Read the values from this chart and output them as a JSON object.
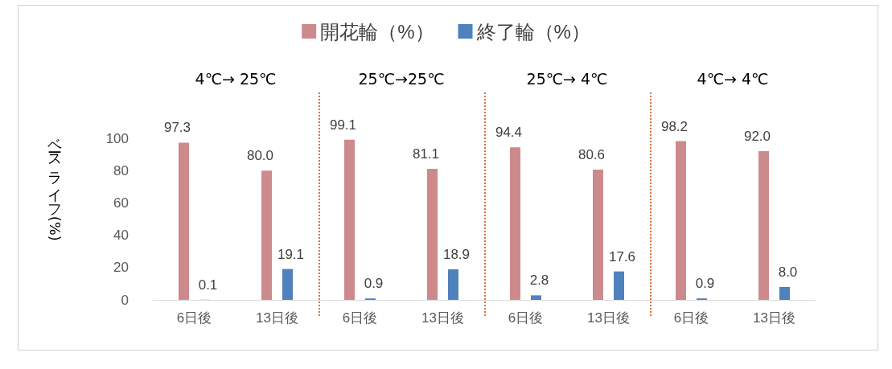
{
  "chart_data": {
    "type": "bar",
    "ylabel": "ベースライフ (%)",
    "categories": [
      "6日後",
      "13日後",
      "6日後",
      "13日後",
      "6日後",
      "13日後",
      "6日後",
      "13日後"
    ],
    "series": [
      {
        "name": "開花輪（%）",
        "color": "#cd8a8d",
        "values": [
          97.3,
          80.0,
          99.1,
          81.1,
          94.4,
          80.6,
          98.2,
          92.0
        ],
        "value_labels": [
          "97.3",
          "80.0",
          "99.1",
          "81.1",
          "94.4",
          "80.6",
          "98.2",
          "92.0"
        ]
      },
      {
        "name": "終了輪（%）",
        "color": "#4f81bd",
        "values": [
          0.1,
          19.1,
          0.9,
          18.9,
          2.8,
          17.6,
          0.9,
          8.0
        ],
        "value_labels": [
          "0.1",
          "19.1",
          "0.9",
          "18.9",
          "2.8",
          "17.6",
          "0.9",
          "8.0"
        ]
      }
    ],
    "annotations": [
      "4℃→ 25℃",
      "25℃→25℃",
      "25℃→ 4℃",
      "4℃→ 4℃"
    ],
    "ylim": [
      0,
      100
    ],
    "yticks": [
      0,
      20,
      40,
      60,
      80,
      100
    ],
    "grid": false,
    "legend": "top"
  }
}
